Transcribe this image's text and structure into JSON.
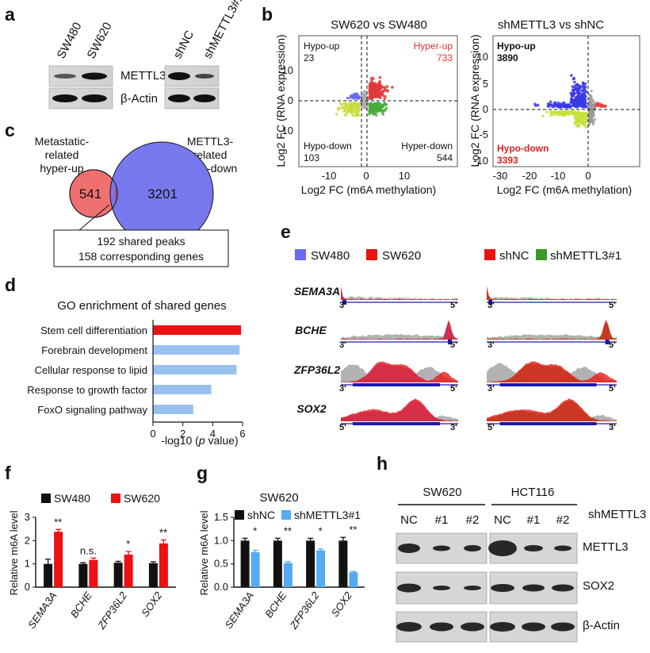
{
  "panels": {
    "a": {
      "letter": "a",
      "lanes_left": [
        "SW480",
        "SW620"
      ],
      "lanes_right": [
        "shNC",
        "shMETTL3#1"
      ],
      "blot_labels": [
        "METTL3",
        "β-Actin"
      ]
    },
    "b": {
      "letter": "b",
      "left_title": "SW620 vs SW480",
      "right_title": "shMETTL3 vs shNC",
      "left_quadrants": {
        "hypo_up": "Hypo-up",
        "hypo_up_n": "23",
        "hyper_up": "Hyper-up",
        "hyper_up_n": "733",
        "hypo_down": "Hypo-down",
        "hypo_down_n": "103",
        "hyper_down": "Hyper-down",
        "hyper_down_n": "544"
      },
      "right_quadrants": {
        "hypo_up": "Hypo-up",
        "hypo_up_n": "3890",
        "hypo_down": "Hypo-down",
        "hypo_down_n": "3393"
      },
      "left_y_ticks": [
        "10",
        "0",
        "-10"
      ],
      "left_x_ticks": [
        "-10",
        "0",
        "10"
      ],
      "right_y_ticks": [
        "10",
        "5",
        "0",
        "-5",
        "-10"
      ],
      "right_x_ticks": [
        "-30",
        "-20",
        "-10",
        "0"
      ],
      "ylabel": "Log2 FC (RNA expression)",
      "xlabel": "Log2 FC (m6A methylation)"
    },
    "c": {
      "letter": "c",
      "left_set_label": [
        "Metastatic-",
        "related",
        "hyper-up"
      ],
      "right_set_label": [
        "METTL3-",
        "related",
        "hypo-down"
      ],
      "left_count": "541",
      "right_count": "3201",
      "box_line1": "192 shared peaks",
      "box_line2": "158 corresponding genes"
    },
    "d": {
      "letter": "d",
      "title": "GO enrichment of shared genes",
      "xlabel_pre": "-log10 (",
      "xlabel_ital": "p",
      "xlabel_post": " value)"
    },
    "e": {
      "letter": "e",
      "legend_left": [
        "SW480",
        "SW620"
      ],
      "legend_right": [
        "shNC",
        "shMETTL3#1"
      ],
      "genes": [
        "SEMA3A",
        "BCHE",
        "ZFP36L2",
        "SOX2"
      ],
      "ends_fwd": [
        "3'",
        "5'"
      ],
      "ends_rev": [
        "5'",
        "3'"
      ]
    },
    "f": {
      "letter": "f",
      "ylabel": "Relative m6A level",
      "sig": [
        "**",
        "n.s.",
        "*",
        "**"
      ]
    },
    "g": {
      "letter": "g",
      "title": "SW620",
      "ylabel": "Relative m6A level",
      "sig": [
        "*",
        "**",
        "*",
        "**"
      ]
    },
    "h": {
      "letter": "h",
      "group_left": "SW620",
      "group_right": "HCT116",
      "row_header": "shMETTL3",
      "lanes": [
        "NC",
        "#1",
        "#2",
        "NC",
        "#1",
        "#2"
      ],
      "blot_labels": [
        "METTL3",
        "SOX2",
        "β-Actin"
      ]
    }
  },
  "chart_data": [
    {
      "type": "bar",
      "panel": "d",
      "title": "GO enrichment of shared genes",
      "orientation": "horizontal",
      "categories": [
        "Stem cell differentiation",
        "Forebrain development",
        "Cellular response to lipid",
        "Response to growth factor",
        "FoxO signaling pathway"
      ],
      "values": [
        5.9,
        5.8,
        5.6,
        3.9,
        2.7
      ],
      "colors": [
        "#ee1111",
        "#99c1f0",
        "#99c1f0",
        "#99c1f0",
        "#99c1f0"
      ],
      "xlabel": "-log10 (p value)",
      "xticks": [
        "0",
        "2",
        "4",
        "6"
      ],
      "xlim": [
        0,
        6
      ]
    },
    {
      "type": "bar",
      "panel": "f",
      "categories": [
        "SEMA3A",
        "BCHE",
        "ZFP36L2",
        "SOX2"
      ],
      "series": [
        {
          "name": "SW480",
          "color": "#111111",
          "values": [
            1.0,
            1.0,
            1.05,
            1.03
          ],
          "errors": [
            0.2,
            0.05,
            0.06,
            0.06
          ]
        },
        {
          "name": "SW620",
          "color": "#ee1111",
          "values": [
            2.38,
            1.17,
            1.4,
            1.88
          ],
          "errors": [
            0.1,
            0.08,
            0.13,
            0.15
          ]
        }
      ],
      "ylabel": "Relative m6A level",
      "yticks": [
        "0",
        "1",
        "2",
        "3"
      ],
      "ylim": [
        0,
        3
      ]
    },
    {
      "type": "bar",
      "panel": "g",
      "title": "SW620",
      "categories": [
        "SEMA3A",
        "BCHE",
        "ZFP36L2",
        "SOX2"
      ],
      "series": [
        {
          "name": "shNC",
          "color": "#111111",
          "values": [
            1.0,
            1.0,
            1.0,
            1.0
          ],
          "errors": [
            0.05,
            0.05,
            0.05,
            0.07
          ]
        },
        {
          "name": "shMETTL3#1",
          "color": "#55aaf0",
          "values": [
            0.75,
            0.52,
            0.79,
            0.32
          ],
          "errors": [
            0.04,
            0.03,
            0.03,
            0.02
          ]
        }
      ],
      "ylabel": "Relative m6A level",
      "yticks": [
        "0.0",
        "0.5",
        "1.0",
        "1.5"
      ],
      "ylim": [
        0,
        1.5
      ]
    }
  ]
}
